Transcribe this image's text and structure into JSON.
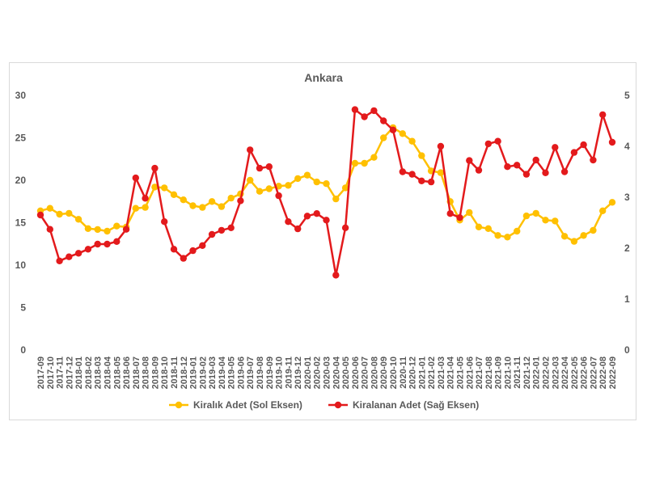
{
  "chart_data": {
    "type": "line",
    "title": "Ankara",
    "left_axis": {
      "min": 0,
      "max": 30,
      "ticks": [
        "0",
        "5",
        "10",
        "15",
        "20",
        "25",
        "30"
      ]
    },
    "right_axis": {
      "min": 0,
      "max": 5,
      "ticks": [
        "0",
        "1",
        "2",
        "3",
        "4",
        "5"
      ]
    },
    "grid": false,
    "legend_position": "bottom",
    "x": [
      "2017-09",
      "2017-10",
      "2017-11",
      "2017-12",
      "2018-01",
      "2018-02",
      "2018-03",
      "2018-04",
      "2018-05",
      "2018-06",
      "2018-07",
      "2018-08",
      "2018-09",
      "2018-10",
      "2018-11",
      "2018-12",
      "2019-01",
      "2019-02",
      "2019-03",
      "2019-04",
      "2019-05",
      "2019-06",
      "2019-07",
      "2019-08",
      "2019-09",
      "2019-10",
      "2019-11",
      "2019-12",
      "2020-01",
      "2020-02",
      "2020-03",
      "2020-04",
      "2020-05",
      "2020-06",
      "2020-07",
      "2020-08",
      "2020-09",
      "2020-10",
      "2020-11",
      "2020-12",
      "2021-01",
      "2021-02",
      "2021-03",
      "2021-04",
      "2021-05",
      "2021-06",
      "2021-07",
      "2021-08",
      "2021-09",
      "2021-10",
      "2021-11",
      "2021-12",
      "2022-01",
      "2022-02",
      "2022-03",
      "2022-04",
      "2022-05",
      "2022-06",
      "2022-07",
      "2022-08",
      "2022-09"
    ],
    "series": [
      {
        "name": "Kiralık Adet (Sol Eksen)",
        "axis": "left",
        "color": "#FFC000",
        "values": [
          16.4,
          16.7,
          16.0,
          16.1,
          15.4,
          14.3,
          14.2,
          14.0,
          14.6,
          14.5,
          16.7,
          16.8,
          19.2,
          19.1,
          18.3,
          17.7,
          17.0,
          16.8,
          17.5,
          16.9,
          17.9,
          18.4,
          20.0,
          18.7,
          19.0,
          19.3,
          19.4,
          20.2,
          20.6,
          19.8,
          19.6,
          17.8,
          19.1,
          22.0,
          22.0,
          22.7,
          25.0,
          26.2,
          25.5,
          24.6,
          22.9,
          21.1,
          20.9,
          17.5,
          15.3,
          16.2,
          14.5,
          14.3,
          13.5,
          13.3,
          14.0,
          15.8,
          16.1,
          15.3,
          15.2,
          13.4,
          12.8,
          13.5,
          14.1,
          16.4,
          17.4
        ]
      },
      {
        "name": "Kiralanan Adet (Sağ Eksen)",
        "axis": "right",
        "color": "#E31A1C",
        "values": [
          2.65,
          2.37,
          1.75,
          1.83,
          1.9,
          1.98,
          2.08,
          2.08,
          2.13,
          2.37,
          3.38,
          2.98,
          3.57,
          2.52,
          1.98,
          1.8,
          1.95,
          2.05,
          2.27,
          2.35,
          2.4,
          2.93,
          3.93,
          3.57,
          3.6,
          3.03,
          2.52,
          2.38,
          2.63,
          2.68,
          2.55,
          1.47,
          2.4,
          4.72,
          4.58,
          4.7,
          4.5,
          4.32,
          3.5,
          3.45,
          3.32,
          3.3,
          4.0,
          2.68,
          2.6,
          3.72,
          3.53,
          4.05,
          4.1,
          3.6,
          3.63,
          3.45,
          3.73,
          3.48,
          3.98,
          3.5,
          3.88,
          4.03,
          3.73,
          4.62,
          4.08
        ]
      }
    ]
  }
}
